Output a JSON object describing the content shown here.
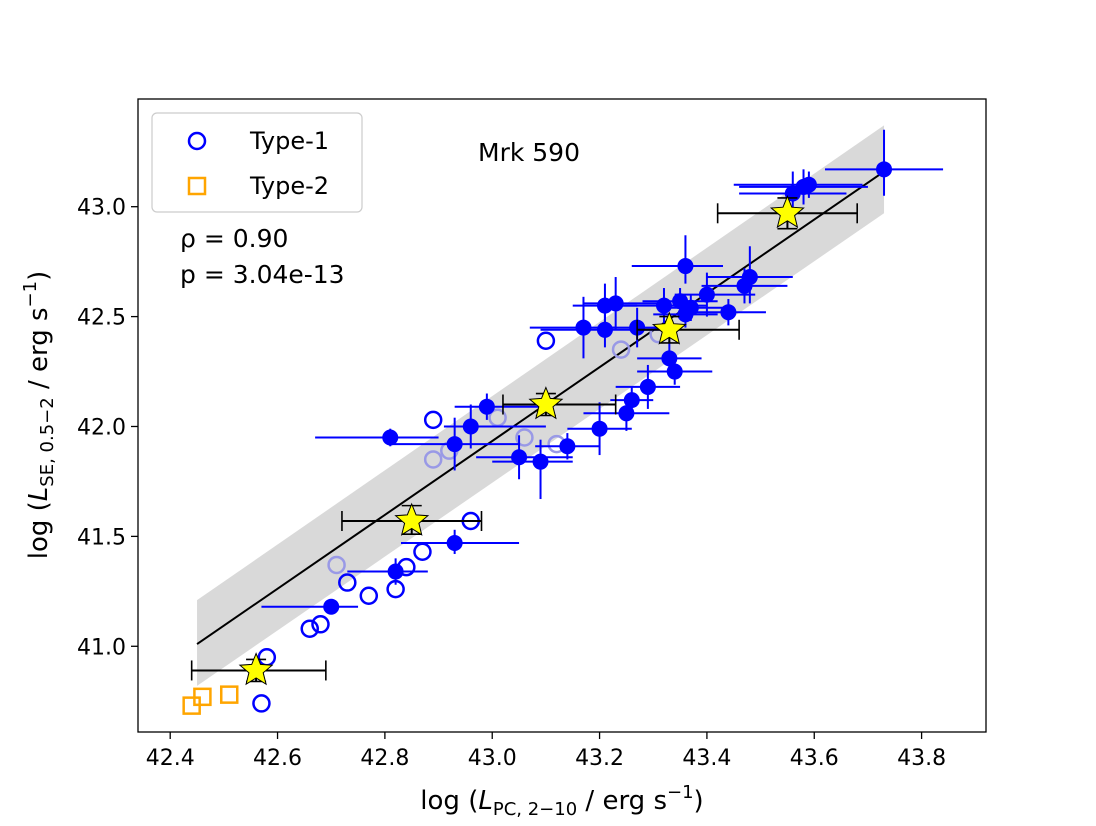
{
  "chart_data": {
    "type": "scatter",
    "annotation": "Mrk 590",
    "stats": {
      "rho_label": "ρ = 0.90",
      "p_label": "p = 3.04e-13"
    },
    "xlabel": {
      "prefix": "log (",
      "var": "L",
      "sub": "PC, 2−10",
      "unit": " / erg s",
      "sup": "−1",
      "suffix": ")"
    },
    "ylabel": {
      "prefix": "log (",
      "var": "L",
      "sub": "SE, 0.5−2",
      "unit": " / erg s",
      "sup": "−1",
      "suffix": ")"
    },
    "xlim": [
      42.34,
      43.92
    ],
    "ylim": [
      40.61,
      43.49
    ],
    "xticks": [
      42.4,
      42.6,
      42.8,
      43.0,
      43.2,
      43.4,
      43.6,
      43.8
    ],
    "xtick_labels": [
      "42.4",
      "42.6",
      "42.8",
      "43.0",
      "43.2",
      "43.4",
      "43.6",
      "43.8"
    ],
    "yticks": [
      41.0,
      41.5,
      42.0,
      42.5,
      43.0
    ],
    "ytick_labels": [
      "41.0",
      "41.5",
      "42.0",
      "42.5",
      "43.0"
    ],
    "legend": [
      {
        "label": "Type-1",
        "marker": "circle-open",
        "color": "#0000ff"
      },
      {
        "label": "Type-2",
        "marker": "square-open",
        "color": "#ffa500"
      }
    ],
    "colors": {
      "type1": "#0000ff",
      "type1_faded": "#9999e6",
      "type2": "#ffa500",
      "fit": "#000000",
      "band": "#d9d9d9",
      "star": "#ffff00"
    },
    "fit_line": {
      "x": [
        42.45,
        43.73
      ],
      "y": [
        41.01,
        43.16
      ]
    },
    "fit_band": {
      "x": [
        42.45,
        43.73
      ],
      "upper": [
        41.21,
        43.37
      ],
      "lower": [
        40.82,
        42.97
      ]
    },
    "open_type1": [
      [
        42.57,
        40.74
      ],
      [
        42.58,
        40.95
      ],
      [
        42.66,
        41.08
      ],
      [
        42.68,
        41.1
      ],
      [
        42.73,
        41.29
      ],
      [
        42.77,
        41.23
      ],
      [
        42.82,
        41.26
      ],
      [
        42.84,
        41.36
      ],
      [
        42.87,
        41.43
      ],
      [
        42.96,
        41.57
      ],
      [
        42.89,
        42.03
      ],
      [
        43.1,
        42.39
      ]
    ],
    "open_type1_faded": [
      [
        42.71,
        41.37
      ],
      [
        42.89,
        41.85
      ],
      [
        42.92,
        41.89
      ],
      [
        43.01,
        42.04
      ],
      [
        43.06,
        41.95
      ],
      [
        43.12,
        41.92
      ],
      [
        43.24,
        42.35
      ],
      [
        43.31,
        42.42
      ]
    ],
    "type2_points": [
      [
        42.44,
        40.73
      ],
      [
        42.46,
        40.77
      ],
      [
        42.51,
        40.78
      ]
    ],
    "filled_type1": [
      {
        "x": 42.7,
        "y": 41.18,
        "xl": 0.13,
        "xr": 0.05,
        "yd": 0.0,
        "yu": 0.0
      },
      {
        "x": 42.82,
        "y": 41.34,
        "xl": 0.09,
        "xr": 0.06,
        "yd": 0.06,
        "yu": 0.06
      },
      {
        "x": 42.93,
        "y": 41.47,
        "xl": 0.1,
        "xr": 0.12,
        "yd": 0.05,
        "yu": 0.06
      },
      {
        "x": 42.81,
        "y": 41.95,
        "xl": 0.14,
        "xr": 0.09,
        "yd": 0.04,
        "yu": 0.04
      },
      {
        "x": 42.93,
        "y": 41.92,
        "xl": 0.12,
        "xr": 0.12,
        "yd": 0.12,
        "yu": 0.12
      },
      {
        "x": 42.96,
        "y": 42.0,
        "xl": 0.05,
        "xr": 0.14,
        "yd": 0.1,
        "yu": 0.1
      },
      {
        "x": 42.99,
        "y": 42.09,
        "xl": 0.06,
        "xr": 0.12,
        "yd": 0.06,
        "yu": 0.06
      },
      {
        "x": 43.05,
        "y": 41.86,
        "xl": 0.08,
        "xr": 0.1,
        "yd": 0.1,
        "yu": 0.1
      },
      {
        "x": 43.09,
        "y": 41.84,
        "xl": 0.09,
        "xr": 0.06,
        "yd": 0.17,
        "yu": 0.1
      },
      {
        "x": 43.14,
        "y": 41.91,
        "xl": 0.06,
        "xr": 0.06,
        "yd": 0.06,
        "yu": 0.06
      },
      {
        "x": 43.17,
        "y": 42.45,
        "xl": 0.1,
        "xr": 0.06,
        "yd": 0.14,
        "yu": 0.14
      },
      {
        "x": 43.2,
        "y": 41.99,
        "xl": 0.06,
        "xr": 0.06,
        "yd": 0.12,
        "yu": 0.12
      },
      {
        "x": 43.21,
        "y": 42.55,
        "xl": 0.06,
        "xr": 0.06,
        "yd": 0.1,
        "yu": 0.1
      },
      {
        "x": 43.21,
        "y": 42.44,
        "xl": 0.12,
        "xr": 0.12,
        "yd": 0.08,
        "yu": 0.08
      },
      {
        "x": 43.23,
        "y": 42.56,
        "xl": 0.06,
        "xr": 0.1,
        "yd": 0.12,
        "yu": 0.12
      },
      {
        "x": 43.25,
        "y": 42.06,
        "xl": 0.08,
        "xr": 0.08,
        "yd": 0.08,
        "yu": 0.08
      },
      {
        "x": 43.26,
        "y": 42.12,
        "xl": 0.04,
        "xr": 0.04,
        "yd": 0.06,
        "yu": 0.06
      },
      {
        "x": 43.27,
        "y": 42.45,
        "xl": 0.06,
        "xr": 0.06,
        "yd": 0.09,
        "yu": 0.09
      },
      {
        "x": 43.29,
        "y": 42.18,
        "xl": 0.06,
        "xr": 0.06,
        "yd": 0.1,
        "yu": 0.1
      },
      {
        "x": 43.32,
        "y": 42.55,
        "xl": 0.08,
        "xr": 0.08,
        "yd": 0.08,
        "yu": 0.08
      },
      {
        "x": 43.33,
        "y": 42.31,
        "xl": 0.06,
        "xr": 0.06,
        "yd": 0.08,
        "yu": 0.08
      },
      {
        "x": 43.34,
        "y": 42.25,
        "xl": 0.07,
        "xr": 0.07,
        "yd": 0.06,
        "yu": 0.06
      },
      {
        "x": 43.35,
        "y": 42.57,
        "xl": 0.07,
        "xr": 0.07,
        "yd": 0.06,
        "yu": 0.06
      },
      {
        "x": 43.36,
        "y": 42.73,
        "xl": 0.1,
        "xr": 0.07,
        "yd": 0.08,
        "yu": 0.14
      },
      {
        "x": 43.36,
        "y": 42.51,
        "xl": 0.06,
        "xr": 0.06,
        "yd": 0.06,
        "yu": 0.06
      },
      {
        "x": 43.37,
        "y": 42.54,
        "xl": 0.06,
        "xr": 0.06,
        "yd": 0.06,
        "yu": 0.06
      },
      {
        "x": 43.4,
        "y": 42.6,
        "xl": 0.06,
        "xr": 0.09,
        "yd": 0.1,
        "yu": 0.1
      },
      {
        "x": 43.44,
        "y": 42.52,
        "xl": 0.08,
        "xr": 0.07,
        "yd": 0.06,
        "yu": 0.06
      },
      {
        "x": 43.47,
        "y": 42.64,
        "xl": 0.08,
        "xr": 0.08,
        "yd": 0.08,
        "yu": 0.08
      },
      {
        "x": 43.48,
        "y": 42.68,
        "xl": 0.08,
        "xr": 0.08,
        "yd": 0.12,
        "yu": 0.14
      },
      {
        "x": 43.56,
        "y": 43.06,
        "xl": 0.1,
        "xr": 0.1,
        "yd": 0.1,
        "yu": 0.1
      },
      {
        "x": 43.58,
        "y": 43.09,
        "xl": 0.12,
        "xr": 0.12,
        "yd": 0.08,
        "yu": 0.08
      },
      {
        "x": 43.59,
        "y": 43.1,
        "xl": 0.14,
        "xr": 0.1,
        "yd": 0.06,
        "yu": 0.06
      },
      {
        "x": 43.73,
        "y": 43.17,
        "xl": 0.11,
        "xr": 0.11,
        "yd": 0.12,
        "yu": 0.18
      }
    ],
    "stars": [
      {
        "x": 42.56,
        "y": 40.89,
        "xl": 0.12,
        "xr": 0.13,
        "yd": 0.05,
        "yu": 0.05
      },
      {
        "x": 42.85,
        "y": 41.57,
        "xl": 0.13,
        "xr": 0.13,
        "yd": 0.06,
        "yu": 0.07
      },
      {
        "x": 43.1,
        "y": 42.1,
        "xl": 0.08,
        "xr": 0.13,
        "yd": 0.05,
        "yu": 0.05
      },
      {
        "x": 43.33,
        "y": 42.44,
        "xl": 0.06,
        "xr": 0.13,
        "yd": 0.06,
        "yu": 0.06
      },
      {
        "x": 43.55,
        "y": 42.97,
        "xl": 0.13,
        "xr": 0.13,
        "yd": 0.07,
        "yu": 0.07
      }
    ]
  }
}
